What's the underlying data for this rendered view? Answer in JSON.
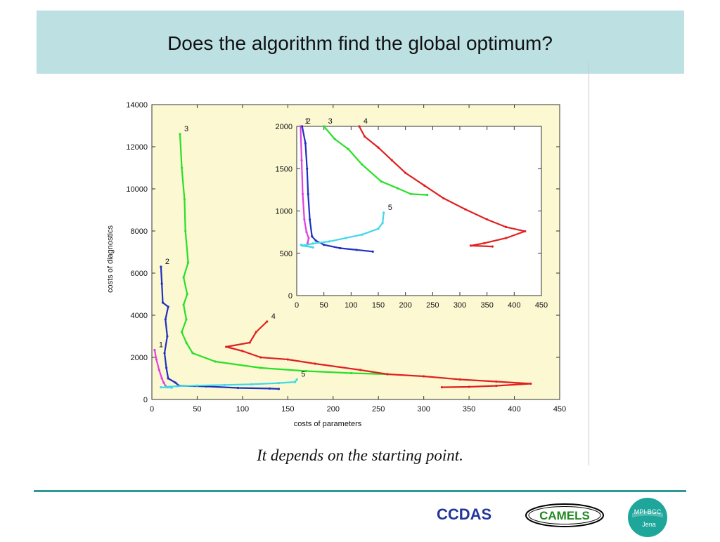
{
  "slide": {
    "title": "Does the algorithm find the global optimum?",
    "caption": "It depends on the starting point.",
    "footer": {
      "ccdas": "CCDAS",
      "camels": "CAMELS",
      "mpi_top": "MPI-BGC",
      "mpi_bottom": "Jena"
    }
  },
  "colors": {
    "title_bar": "#bde0e3",
    "plot_bg": "#fbf8d2",
    "footer_line": "#2e9a96",
    "ccdas_text": "#23379a"
  },
  "chart_data": [
    {
      "type": "line",
      "xlabel": "costs of parameters",
      "ylabel": "costs of diagnostics",
      "xlim": [
        0,
        450
      ],
      "ylim": [
        0,
        14000
      ],
      "xticks": [
        0,
        50,
        100,
        150,
        200,
        250,
        300,
        350,
        400,
        450
      ],
      "yticks": [
        0,
        2000,
        4000,
        6000,
        8000,
        10000,
        12000,
        14000
      ],
      "grid": false,
      "series": [
        {
          "name": "1",
          "color": "#e040e0",
          "points": [
            [
              3,
              2350
            ],
            [
              5,
              1900
            ],
            [
              8,
              1400
            ],
            [
              11,
              1000
            ],
            [
              13,
              800
            ],
            [
              15,
              650
            ],
            [
              17,
              580
            ]
          ]
        },
        {
          "name": "2",
          "color": "#2030c0",
          "points": [
            [
              10,
              6300
            ],
            [
              11,
              5500
            ],
            [
              12,
              4600
            ],
            [
              18,
              4400
            ],
            [
              15,
              3800
            ],
            [
              17,
              3000
            ],
            [
              14,
              2200
            ],
            [
              16,
              1500
            ],
            [
              18,
              1000
            ],
            [
              26,
              800
            ],
            [
              30,
              650
            ],
            [
              60,
              620
            ],
            [
              95,
              550
            ],
            [
              130,
              520
            ],
            [
              140,
              500
            ]
          ]
        },
        {
          "name": "3",
          "color": "#28e028",
          "points": [
            [
              31,
              12600
            ],
            [
              33,
              11000
            ],
            [
              36,
              9500
            ],
            [
              37,
              8000
            ],
            [
              40,
              6500
            ],
            [
              35,
              5800
            ],
            [
              39,
              5000
            ],
            [
              35,
              4500
            ],
            [
              38,
              3800
            ],
            [
              33,
              3200
            ],
            [
              38,
              2700
            ],
            [
              45,
              2200
            ],
            [
              70,
              1800
            ],
            [
              120,
              1500
            ],
            [
              170,
              1350
            ],
            [
              220,
              1250
            ],
            [
              260,
              1200
            ]
          ]
        },
        {
          "name": "4",
          "color": "#e02020",
          "points": [
            [
              127,
              3700
            ],
            [
              115,
              3200
            ],
            [
              108,
              2700
            ],
            [
              82,
              2500
            ],
            [
              100,
              2300
            ],
            [
              120,
              2000
            ],
            [
              150,
              1900
            ],
            [
              180,
              1700
            ],
            [
              230,
              1400
            ],
            [
              260,
              1200
            ],
            [
              300,
              1100
            ],
            [
              340,
              950
            ],
            [
              380,
              850
            ],
            [
              418,
              750
            ],
            [
              380,
              650
            ],
            [
              350,
              600
            ],
            [
              320,
              580
            ]
          ]
        },
        {
          "name": "5",
          "color": "#40d8e8",
          "points": [
            [
              160,
              950
            ],
            [
              158,
              830
            ],
            [
              140,
              780
            ],
            [
              110,
              720
            ],
            [
              80,
              690
            ],
            [
              50,
              660
            ],
            [
              28,
              630
            ],
            [
              15,
              600
            ],
            [
              22,
              560
            ],
            [
              10,
              580
            ]
          ]
        }
      ]
    },
    {
      "type": "line",
      "xlim": [
        0,
        450
      ],
      "ylim": [
        0,
        2000
      ],
      "xticks": [
        0,
        50,
        100,
        150,
        200,
        250,
        300,
        350,
        400,
        450
      ],
      "yticks": [
        0,
        500,
        1000,
        1500,
        2000
      ],
      "grid": false,
      "series": [
        {
          "name": "1",
          "color": "#e040e0",
          "points": [
            [
              7,
              2000
            ],
            [
              9,
              1600
            ],
            [
              11,
              1200
            ],
            [
              14,
              900
            ],
            [
              18,
              750
            ],
            [
              22,
              680
            ],
            [
              20,
              620
            ]
          ]
        },
        {
          "name": "2",
          "color": "#2030c0",
          "points": [
            [
              10,
              2000
            ],
            [
              16,
              1800
            ],
            [
              19,
              1500
            ],
            [
              21,
              1200
            ],
            [
              24,
              900
            ],
            [
              28,
              700
            ],
            [
              35,
              650
            ],
            [
              50,
              600
            ],
            [
              80,
              560
            ],
            [
              110,
              540
            ],
            [
              140,
              520
            ]
          ]
        },
        {
          "name": "3",
          "color": "#28e028",
          "points": [
            [
              50,
              2000
            ],
            [
              70,
              1850
            ],
            [
              95,
              1730
            ],
            [
              120,
              1550
            ],
            [
              155,
              1350
            ],
            [
              185,
              1270
            ],
            [
              210,
              1200
            ],
            [
              240,
              1190
            ]
          ]
        },
        {
          "name": "4",
          "color": "#e02020",
          "points": [
            [
              115,
              2000
            ],
            [
              125,
              1880
            ],
            [
              150,
              1750
            ],
            [
              175,
              1600
            ],
            [
              200,
              1450
            ],
            [
              235,
              1300
            ],
            [
              270,
              1150
            ],
            [
              310,
              1020
            ],
            [
              350,
              900
            ],
            [
              385,
              810
            ],
            [
              420,
              760
            ],
            [
              385,
              680
            ],
            [
              345,
              620
            ],
            [
              320,
              590
            ],
            [
              360,
              580
            ]
          ]
        },
        {
          "name": "5",
          "color": "#40d8e8",
          "points": [
            [
              160,
              980
            ],
            [
              158,
              860
            ],
            [
              150,
              790
            ],
            [
              120,
              720
            ],
            [
              90,
              680
            ],
            [
              60,
              640
            ],
            [
              30,
              615
            ],
            [
              10,
              590
            ],
            [
              30,
              570
            ],
            [
              8,
              600
            ]
          ]
        }
      ]
    }
  ]
}
